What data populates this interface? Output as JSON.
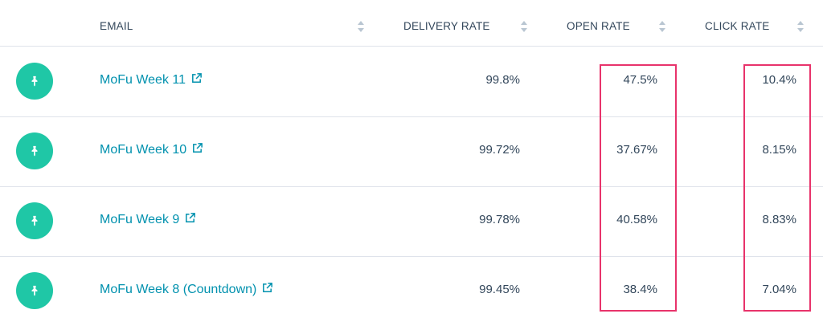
{
  "columns": {
    "email": "EMAIL",
    "delivery_rate": "DELIVERY RATE",
    "open_rate": "OPEN RATE",
    "click_rate": "CLICK RATE"
  },
  "rows": [
    {
      "name": "MoFu Week 11",
      "delivery_rate": "99.8%",
      "open_rate": "47.5%",
      "click_rate": "10.4%"
    },
    {
      "name": "MoFu Week 10",
      "delivery_rate": "99.72%",
      "open_rate": "37.67%",
      "click_rate": "8.15%"
    },
    {
      "name": "MoFu Week 9",
      "delivery_rate": "99.78%",
      "open_rate": "40.58%",
      "click_rate": "8.83%"
    },
    {
      "name": "MoFu Week 8 (Countdown)",
      "delivery_rate": "99.45%",
      "open_rate": "38.4%",
      "click_rate": "7.04%"
    }
  ],
  "colors": {
    "pin_background": "#1fc7a6",
    "link": "#0091ae",
    "highlight": "#e8336b",
    "text": "#33475b"
  },
  "icons": {
    "row_icon": "pin-icon",
    "link_icon": "external-link-icon",
    "sort_icon": "sort-arrows-icon"
  }
}
